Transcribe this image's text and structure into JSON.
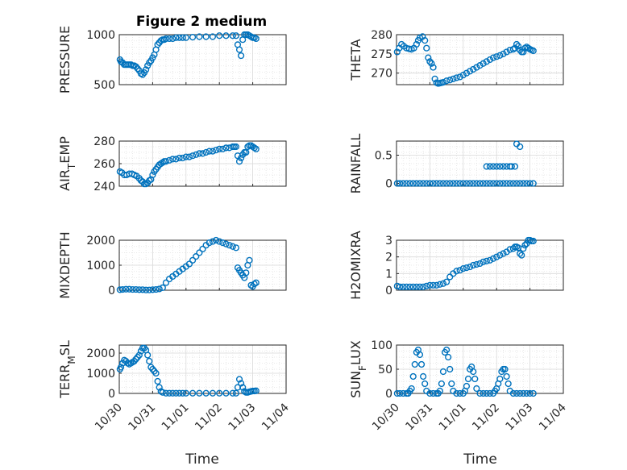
{
  "figure": {
    "title": "Figure 2 medium",
    "marker_color": "#0072bd",
    "x_axis": {
      "label": "Time",
      "tick_labels": [
        "10/30",
        "10/31",
        "11/01",
        "11/02",
        "11/03",
        "11/04"
      ],
      "xlim": [
        0,
        5
      ]
    }
  },
  "chart_data": [
    {
      "type": "scatter",
      "ylabel": "PRESSURE",
      "ylim": [
        500,
        1000
      ],
      "yticks": [
        500,
        1000
      ],
      "ytick_labels": [
        "500",
        "1000"
      ],
      "grid": "on",
      "x": [
        0.02,
        0.05,
        0.1,
        0.15,
        0.2,
        0.25,
        0.3,
        0.35,
        0.4,
        0.45,
        0.5,
        0.55,
        0.6,
        0.65,
        0.7,
        0.75,
        0.8,
        0.85,
        0.9,
        0.95,
        1.0,
        1.05,
        1.1,
        1.15,
        1.2,
        1.25,
        1.3,
        1.35,
        1.4,
        1.5,
        1.6,
        1.7,
        1.8,
        1.9,
        2.0,
        2.2,
        2.4,
        2.6,
        2.8,
        3.0,
        3.2,
        3.4,
        3.5,
        3.55,
        3.6,
        3.65,
        3.7,
        3.75,
        3.8,
        3.85,
        3.9,
        3.95,
        4.0,
        4.05,
        4.1
      ],
      "y": [
        750,
        730,
        720,
        700,
        700,
        700,
        700,
        700,
        690,
        690,
        680,
        660,
        640,
        610,
        600,
        620,
        650,
        690,
        720,
        740,
        770,
        800,
        850,
        900,
        920,
        940,
        950,
        950,
        960,
        960,
        960,
        970,
        970,
        970,
        970,
        975,
        980,
        980,
        980,
        990,
        990,
        990,
        990,
        900,
        850,
        790,
        950,
        1000,
        1000,
        1000,
        990,
        980,
        970,
        970,
        960
      ]
    },
    {
      "type": "scatter",
      "ylabel": "THETA",
      "ylim": [
        267,
        280
      ],
      "yticks": [
        270,
        275,
        280
      ],
      "ytick_labels": [
        "270",
        "275",
        "280"
      ],
      "grid": "on",
      "x": [
        0.02,
        0.08,
        0.15,
        0.22,
        0.3,
        0.38,
        0.45,
        0.52,
        0.6,
        0.65,
        0.7,
        0.78,
        0.85,
        0.9,
        0.95,
        1.0,
        1.05,
        1.1,
        1.15,
        1.2,
        1.25,
        1.3,
        1.35,
        1.4,
        1.5,
        1.6,
        1.7,
        1.8,
        1.9,
        2.0,
        2.1,
        2.2,
        2.3,
        2.4,
        2.5,
        2.6,
        2.7,
        2.8,
        2.9,
        3.0,
        3.1,
        3.2,
        3.3,
        3.4,
        3.5,
        3.55,
        3.6,
        3.65,
        3.7,
        3.75,
        3.8,
        3.85,
        3.9,
        3.95,
        4.0,
        4.05,
        4.1
      ],
      "y": [
        275.5,
        276.5,
        277.5,
        277,
        276.5,
        276.3,
        276.2,
        276.5,
        277.5,
        278.5,
        279.2,
        279.5,
        278.5,
        276.5,
        274,
        273,
        272.5,
        271.5,
        268.5,
        267.5,
        267.3,
        267.4,
        267.5,
        267.6,
        268,
        268.2,
        268.5,
        268.8,
        269,
        269.5,
        270,
        270.5,
        271,
        271.5,
        272,
        272.5,
        273,
        273.5,
        274,
        274.3,
        274.6,
        275,
        275.5,
        276,
        276.2,
        276.5,
        277.5,
        277,
        276,
        275.5,
        275.5,
        276.5,
        276.8,
        276.5,
        276.2,
        276,
        275.8
      ]
    },
    {
      "type": "scatter",
      "ylabel": "AIR_TEMP",
      "ylim": [
        240,
        280
      ],
      "yticks": [
        240,
        260,
        280
      ],
      "ytick_labels": [
        "240",
        "260",
        "280"
      ],
      "grid": "on",
      "x": [
        0.02,
        0.08,
        0.15,
        0.22,
        0.3,
        0.38,
        0.45,
        0.52,
        0.6,
        0.65,
        0.7,
        0.75,
        0.8,
        0.85,
        0.9,
        0.95,
        1.0,
        1.05,
        1.1,
        1.15,
        1.2,
        1.25,
        1.3,
        1.35,
        1.4,
        1.5,
        1.6,
        1.7,
        1.8,
        1.9,
        2.0,
        2.1,
        2.2,
        2.3,
        2.4,
        2.5,
        2.6,
        2.7,
        2.8,
        2.9,
        3.0,
        3.1,
        3.2,
        3.3,
        3.4,
        3.45,
        3.5,
        3.55,
        3.6,
        3.65,
        3.7,
        3.75,
        3.8,
        3.85,
        3.9,
        3.95,
        4.0,
        4.05,
        4.1
      ],
      "y": [
        253,
        252,
        250,
        250,
        251,
        251,
        250,
        249,
        247,
        245,
        244,
        242,
        242,
        243,
        245,
        246,
        250,
        253,
        255,
        257,
        259,
        260,
        261,
        262,
        262,
        263,
        264,
        264,
        265,
        265,
        266,
        266,
        267,
        268,
        269,
        269,
        270,
        271,
        271,
        272,
        273,
        273,
        274,
        274,
        275,
        275,
        275,
        267,
        262,
        265,
        268,
        270,
        270,
        275,
        276,
        276,
        275,
        274,
        273
      ]
    },
    {
      "type": "scatter",
      "ylabel": "RAINFALL",
      "ylim": [
        -0.05,
        0.75
      ],
      "yticks": [
        0,
        0.5
      ],
      "ytick_labels": [
        "0",
        "0.5"
      ],
      "grid": "on",
      "x": [
        0.02,
        0.1,
        0.2,
        0.3,
        0.4,
        0.5,
        0.6,
        0.7,
        0.8,
        0.9,
        1.0,
        1.1,
        1.2,
        1.3,
        1.4,
        1.5,
        1.6,
        1.7,
        1.8,
        1.9,
        2.0,
        2.1,
        2.2,
        2.3,
        2.4,
        2.5,
        2.6,
        2.7,
        2.8,
        2.9,
        3.0,
        3.1,
        3.2,
        3.3,
        3.4,
        3.5,
        3.6,
        3.7,
        3.8,
        3.9,
        4.0,
        4.1,
        2.7,
        2.8,
        2.9,
        3.0,
        3.1,
        3.2,
        3.3,
        3.4,
        3.45,
        3.55,
        3.6,
        3.7
      ],
      "y": [
        0,
        0,
        0,
        0,
        0,
        0,
        0,
        0,
        0,
        0,
        0,
        0,
        0,
        0,
        0,
        0,
        0,
        0,
        0,
        0,
        0,
        0,
        0,
        0,
        0,
        0,
        0,
        0,
        0,
        0,
        0,
        0,
        0,
        0,
        0,
        0,
        0,
        0,
        0,
        0,
        0,
        0,
        0.3,
        0.3,
        0.3,
        0.3,
        0.3,
        0.3,
        0.3,
        0.3,
        0.3,
        0.3,
        0.7,
        0.65
      ]
    },
    {
      "type": "scatter",
      "ylabel": "MIXDEPTH",
      "ylim": [
        0,
        2000
      ],
      "yticks": [
        0,
        1000,
        2000
      ],
      "ytick_labels": [
        "0",
        "1000",
        "2000"
      ],
      "grid": "on",
      "x": [
        0.02,
        0.1,
        0.2,
        0.3,
        0.4,
        0.5,
        0.6,
        0.7,
        0.8,
        0.9,
        1.0,
        1.1,
        1.2,
        1.3,
        1.4,
        1.5,
        1.6,
        1.7,
        1.8,
        1.9,
        2.0,
        2.1,
        2.2,
        2.3,
        2.4,
        2.5,
        2.6,
        2.7,
        2.8,
        2.9,
        3.0,
        3.1,
        3.2,
        3.3,
        3.4,
        3.5,
        3.55,
        3.6,
        3.65,
        3.7,
        3.75,
        3.8,
        3.85,
        3.9,
        3.95,
        4.0,
        4.05,
        4.1
      ],
      "y": [
        20,
        30,
        40,
        40,
        30,
        30,
        20,
        20,
        10,
        10,
        20,
        30,
        50,
        100,
        300,
        450,
        550,
        650,
        750,
        850,
        950,
        1050,
        1200,
        1350,
        1500,
        1650,
        1800,
        1900,
        1950,
        2000,
        1950,
        1900,
        1850,
        1800,
        1750,
        1700,
        900,
        800,
        700,
        600,
        500,
        700,
        1000,
        1200,
        200,
        150,
        250,
        300
      ]
    },
    {
      "type": "scatter",
      "ylabel": "H2OMIXRA",
      "ylim": [
        0,
        3
      ],
      "yticks": [
        0,
        1,
        2,
        3
      ],
      "ytick_labels": [
        "0",
        "1",
        "2",
        "3"
      ],
      "grid": "on",
      "x": [
        0.02,
        0.1,
        0.2,
        0.3,
        0.4,
        0.5,
        0.6,
        0.7,
        0.8,
        0.9,
        1.0,
        1.1,
        1.2,
        1.3,
        1.4,
        1.5,
        1.6,
        1.7,
        1.8,
        1.9,
        2.0,
        2.1,
        2.2,
        2.3,
        2.4,
        2.5,
        2.6,
        2.7,
        2.8,
        2.9,
        3.0,
        3.1,
        3.2,
        3.3,
        3.4,
        3.5,
        3.55,
        3.6,
        3.65,
        3.7,
        3.75,
        3.8,
        3.85,
        3.9,
        3.95,
        4.0,
        4.05,
        4.1
      ],
      "y": [
        0.25,
        0.2,
        0.2,
        0.2,
        0.2,
        0.2,
        0.2,
        0.2,
        0.2,
        0.25,
        0.3,
        0.3,
        0.3,
        0.35,
        0.4,
        0.5,
        0.8,
        1.0,
        1.15,
        1.2,
        1.3,
        1.35,
        1.4,
        1.5,
        1.55,
        1.6,
        1.7,
        1.75,
        1.8,
        1.9,
        2.0,
        2.1,
        2.2,
        2.3,
        2.45,
        2.5,
        2.6,
        2.6,
        2.55,
        2.2,
        2.1,
        2.5,
        2.7,
        2.8,
        3.0,
        3.0,
        2.95,
        2.95
      ]
    },
    {
      "type": "scatter",
      "ylabel": "TERR_MSL",
      "ylim": [
        0,
        2400
      ],
      "yticks": [
        0,
        1000,
        2000
      ],
      "ytick_labels": [
        "0",
        "1000",
        "2000"
      ],
      "grid": "on",
      "x": [
        0.02,
        0.05,
        0.1,
        0.15,
        0.2,
        0.25,
        0.3,
        0.35,
        0.4,
        0.45,
        0.5,
        0.55,
        0.6,
        0.65,
        0.7,
        0.75,
        0.8,
        0.85,
        0.9,
        0.95,
        1.0,
        1.05,
        1.1,
        1.15,
        1.2,
        1.25,
        1.3,
        1.4,
        1.5,
        1.6,
        1.7,
        1.8,
        1.9,
        2.0,
        2.2,
        2.4,
        2.6,
        2.8,
        3.0,
        3.2,
        3.4,
        3.5,
        3.55,
        3.6,
        3.65,
        3.7,
        3.75,
        3.8,
        3.85,
        3.9,
        3.95,
        4.0,
        4.05,
        4.1
      ],
      "y": [
        1200,
        1300,
        1500,
        1650,
        1600,
        1500,
        1450,
        1500,
        1550,
        1600,
        1700,
        1800,
        1900,
        2100,
        2250,
        2250,
        2150,
        1900,
        1600,
        1300,
        1200,
        1100,
        1000,
        600,
        300,
        100,
        50,
        10,
        10,
        10,
        10,
        10,
        10,
        10,
        10,
        10,
        10,
        10,
        10,
        10,
        10,
        10,
        300,
        700,
        500,
        300,
        100,
        50,
        50,
        80,
        100,
        120,
        120,
        130
      ]
    },
    {
      "type": "scatter",
      "ylabel": "SUN_FLUX",
      "ylim": [
        0,
        100
      ],
      "yticks": [
        0,
        50,
        100
      ],
      "ytick_labels": [
        "0",
        "50",
        "100"
      ],
      "grid": "on",
      "x": [
        0.02,
        0.1,
        0.2,
        0.3,
        0.35,
        0.4,
        0.45,
        0.5,
        0.55,
        0.6,
        0.65,
        0.7,
        0.75,
        0.8,
        0.85,
        0.9,
        1.0,
        1.1,
        1.2,
        1.25,
        1.3,
        1.35,
        1.4,
        1.45,
        1.5,
        1.55,
        1.6,
        1.65,
        1.7,
        1.8,
        1.9,
        2.0,
        2.05,
        2.1,
        2.15,
        2.2,
        2.25,
        2.3,
        2.35,
        2.4,
        2.5,
        2.6,
        2.7,
        2.8,
        2.9,
        2.95,
        3.0,
        3.05,
        3.1,
        3.15,
        3.2,
        3.25,
        3.3,
        3.35,
        3.4,
        3.5,
        3.6,
        3.7,
        3.8,
        3.9,
        4.0,
        4.1
      ],
      "y": [
        0,
        0,
        0,
        0,
        0,
        5,
        10,
        35,
        60,
        85,
        90,
        80,
        60,
        35,
        20,
        5,
        0,
        0,
        0,
        0,
        5,
        20,
        45,
        85,
        90,
        75,
        50,
        20,
        5,
        0,
        0,
        0,
        5,
        15,
        30,
        50,
        55,
        45,
        30,
        10,
        0,
        0,
        0,
        0,
        0,
        5,
        10,
        20,
        30,
        45,
        50,
        50,
        35,
        20,
        5,
        0,
        0,
        0,
        0,
        0,
        0,
        0
      ]
    }
  ]
}
